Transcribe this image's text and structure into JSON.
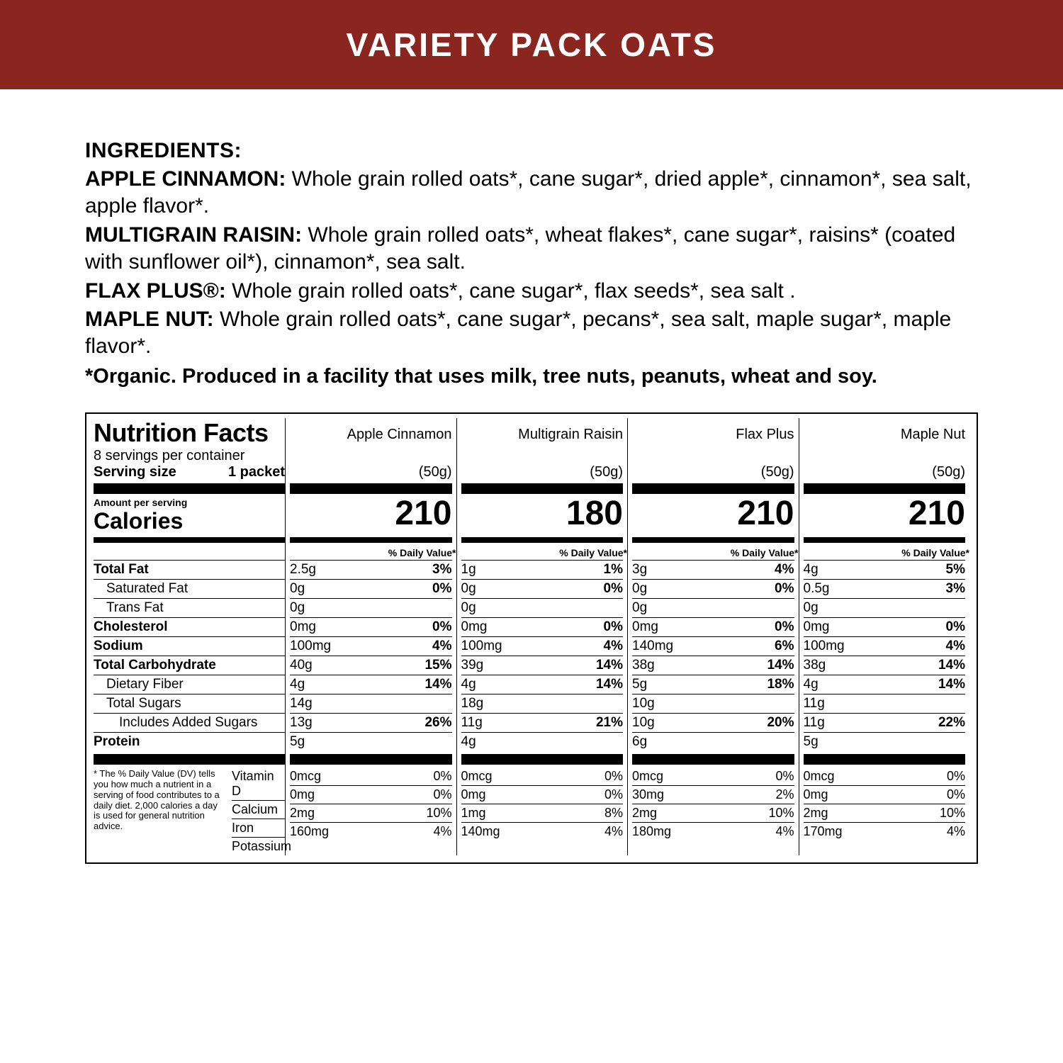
{
  "banner": {
    "title": "VARIETY PACK OATS",
    "bg_color": "#8a2520",
    "text_color": "#ffffff"
  },
  "ingredients": {
    "heading": "INGREDIENTS:",
    "items": [
      {
        "flavor": "APPLE CINNAMON:",
        "text": " Whole grain rolled oats*, cane sugar*, dried apple*, cinnamon*, sea salt, apple flavor*."
      },
      {
        "flavor": "MULTIGRAIN RAISIN:",
        "text": " Whole grain rolled oats*, wheat flakes*, cane sugar*, raisins* (coated with sunflower oil*), cinnamon*, sea salt."
      },
      {
        "flavor": "FLAX PLUS®:",
        "text": " Whole grain rolled oats*, cane sugar*, flax seeds*, sea salt ."
      },
      {
        "flavor": "MAPLE NUT:",
        "text": " Whole grain rolled oats*, cane sugar*, pecans*, sea salt, maple sugar*, maple flavor*."
      }
    ],
    "note": "*Organic. Produced in a facility that uses milk, tree nuts, peanuts, wheat and soy."
  },
  "nutrition": {
    "title": "Nutrition Facts",
    "servings_per_container": "8 servings per container",
    "serving_size_label": "Serving size",
    "serving_size_value": "1 packet",
    "amount_per_serving": "Amount per serving",
    "calories_label": "Calories",
    "dv_header": "% Daily Value*",
    "dv_footnote": "* The % Daily Value (DV) tells you how much a nutrient in a serving of food contributes to a daily diet. 2,000 calories a day is used for general nutrition advice.",
    "columns": [
      {
        "name": "Apple Cinnamon",
        "grams": "(50g)",
        "calories": "210"
      },
      {
        "name": "Multigrain Raisin",
        "grams": "(50g)",
        "calories": "180"
      },
      {
        "name": "Flax Plus",
        "grams": "(50g)",
        "calories": "210"
      },
      {
        "name": "Maple Nut",
        "grams": "(50g)",
        "calories": "210"
      }
    ],
    "rows": [
      {
        "label": "Total Fat",
        "bold": true,
        "indent": 0,
        "vals": [
          [
            "2.5g",
            "3%"
          ],
          [
            "1g",
            "1%"
          ],
          [
            "3g",
            "4%"
          ],
          [
            "4g",
            "5%"
          ]
        ]
      },
      {
        "label": "Saturated Fat",
        "bold": false,
        "indent": 1,
        "vals": [
          [
            "0g",
            "0%"
          ],
          [
            "0g",
            "0%"
          ],
          [
            "0g",
            "0%"
          ],
          [
            "0.5g",
            "3%"
          ]
        ]
      },
      {
        "label": "Trans Fat",
        "bold": false,
        "indent": 1,
        "vals": [
          [
            "0g",
            ""
          ],
          [
            "0g",
            ""
          ],
          [
            "0g",
            ""
          ],
          [
            "0g",
            ""
          ]
        ]
      },
      {
        "label": "Cholesterol",
        "bold": true,
        "indent": 0,
        "vals": [
          [
            "0mg",
            "0%"
          ],
          [
            "0mg",
            "0%"
          ],
          [
            "0mg",
            "0%"
          ],
          [
            "0mg",
            "0%"
          ]
        ]
      },
      {
        "label": "Sodium",
        "bold": true,
        "indent": 0,
        "vals": [
          [
            "100mg",
            "4%"
          ],
          [
            "100mg",
            "4%"
          ],
          [
            "140mg",
            "6%"
          ],
          [
            "100mg",
            "4%"
          ]
        ]
      },
      {
        "label": "Total Carbohydrate",
        "bold": true,
        "indent": 0,
        "vals": [
          [
            "40g",
            "15%"
          ],
          [
            "39g",
            "14%"
          ],
          [
            "38g",
            "14%"
          ],
          [
            "38g",
            "14%"
          ]
        ]
      },
      {
        "label": "Dietary Fiber",
        "bold": false,
        "indent": 1,
        "vals": [
          [
            "4g",
            "14%"
          ],
          [
            "4g",
            "14%"
          ],
          [
            "5g",
            "18%"
          ],
          [
            "4g",
            "14%"
          ]
        ]
      },
      {
        "label": "Total Sugars",
        "bold": false,
        "indent": 1,
        "vals": [
          [
            "14g",
            ""
          ],
          [
            "18g",
            ""
          ],
          [
            "10g",
            ""
          ],
          [
            "11g",
            ""
          ]
        ]
      },
      {
        "label": "Includes Added Sugars",
        "bold": false,
        "indent": 2,
        "vals": [
          [
            "13g",
            "26%"
          ],
          [
            "11g",
            "21%"
          ],
          [
            "10g",
            "20%"
          ],
          [
            "11g",
            "22%"
          ]
        ]
      },
      {
        "label": "Protein",
        "bold": true,
        "indent": 0,
        "vals": [
          [
            "5g",
            ""
          ],
          [
            "4g",
            ""
          ],
          [
            "6g",
            ""
          ],
          [
            "5g",
            ""
          ]
        ]
      }
    ],
    "micronutrients": [
      {
        "label": "Vitamin D",
        "vals": [
          [
            "0mcg",
            "0%"
          ],
          [
            "0mcg",
            "0%"
          ],
          [
            "0mcg",
            "0%"
          ],
          [
            "0mcg",
            "0%"
          ]
        ]
      },
      {
        "label": "Calcium",
        "vals": [
          [
            "0mg",
            "0%"
          ],
          [
            "0mg",
            "0%"
          ],
          [
            "30mg",
            "2%"
          ],
          [
            "0mg",
            "0%"
          ]
        ]
      },
      {
        "label": "Iron",
        "vals": [
          [
            "2mg",
            "10%"
          ],
          [
            "1mg",
            "8%"
          ],
          [
            "2mg",
            "10%"
          ],
          [
            "2mg",
            "10%"
          ]
        ]
      },
      {
        "label": "Potassium",
        "vals": [
          [
            "160mg",
            "4%"
          ],
          [
            "140mg",
            "4%"
          ],
          [
            "180mg",
            "4%"
          ],
          [
            "170mg",
            "4%"
          ]
        ]
      }
    ]
  }
}
